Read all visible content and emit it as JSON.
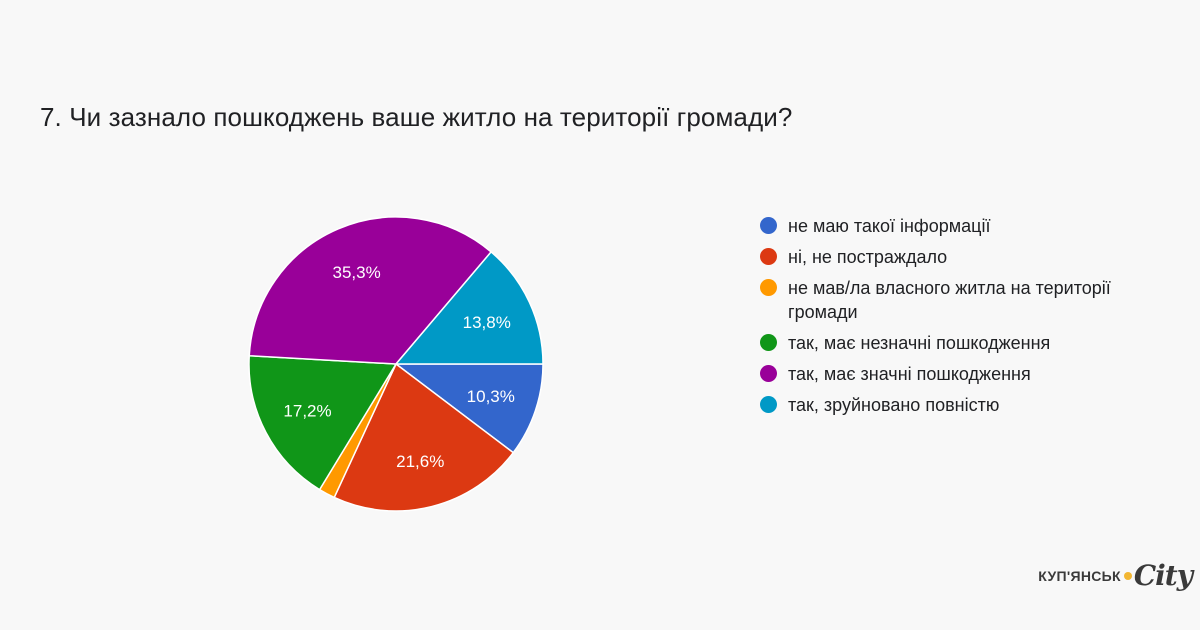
{
  "chart_data": {
    "type": "pie",
    "title": "7. Чи зазнало пошкоджень ваше житло на території громади?",
    "slices": [
      {
        "label": "не маю такої інформації",
        "value": 10.3,
        "display": "10,3%",
        "color": "#3366cc"
      },
      {
        "label": "ні, не постраждало",
        "value": 21.6,
        "display": "21,6%",
        "color": "#dc3912"
      },
      {
        "label": "не мав/ла власного житла на території громади",
        "value": 1.8,
        "display": "",
        "color": "#ff9900"
      },
      {
        "label": "так, має незначні пошкодження",
        "value": 17.2,
        "display": "17,2%",
        "color": "#109618"
      },
      {
        "label": "так, має значні пошкодження",
        "value": 35.3,
        "display": "35,3%",
        "color": "#990099"
      },
      {
        "label": "так, зруйновано повністю",
        "value": 13.8,
        "display": "13,8%",
        "color": "#0099c6"
      }
    ],
    "legend_position": "right"
  },
  "brand": {
    "name": "КУП'ЯНСЬК",
    "suffix": "City",
    "accent": "#f2b632"
  }
}
